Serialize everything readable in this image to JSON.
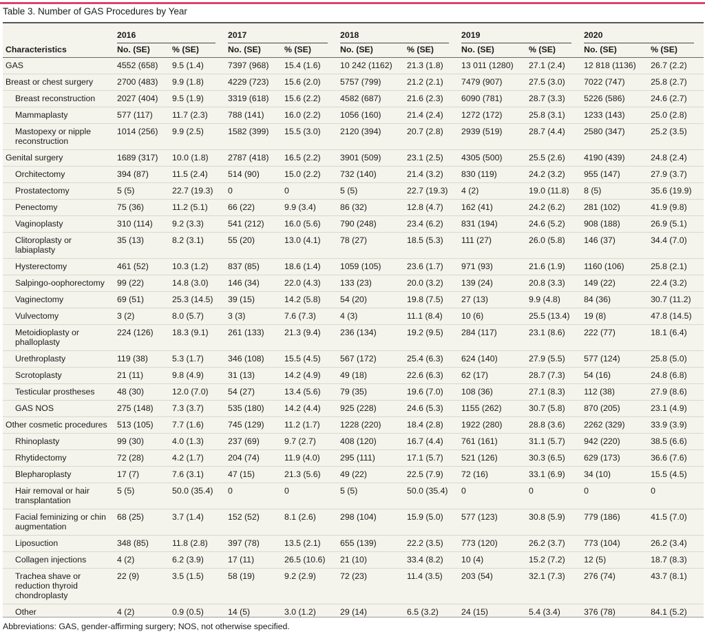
{
  "title": "Table 3. Number of GAS Procedures by Year",
  "header": {
    "characteristics": "Characteristics",
    "years": [
      "2016",
      "2017",
      "2018",
      "2019",
      "2020"
    ],
    "no_se": "No. (SE)",
    "pct_se": "% (SE)"
  },
  "rows": [
    {
      "label": "GAS",
      "indent": 0,
      "values": [
        "4552 (658)",
        "9.5 (1.4)",
        "7397 (968)",
        "15.4 (1.6)",
        "10 242 (1162)",
        "21.3 (1.8)",
        "13 011 (1280)",
        "27.1 (2.4)",
        "12 818 (1136)",
        "26.7 (2.2)"
      ]
    },
    {
      "label": "Breast or chest surgery",
      "indent": 0,
      "values": [
        "2700 (483)",
        "9.9 (1.8)",
        "4229 (723)",
        "15.6 (2.0)",
        "5757 (799)",
        "21.2 (2.1)",
        "7479 (907)",
        "27.5 (3.0)",
        "7022 (747)",
        "25.8 (2.7)"
      ]
    },
    {
      "label": "Breast reconstruction",
      "indent": 1,
      "values": [
        "2027 (404)",
        "9.5 (1.9)",
        "3319 (618)",
        "15.6 (2.2)",
        "4582 (687)",
        "21.6 (2.3)",
        "6090 (781)",
        "28.7 (3.3)",
        "5226 (586)",
        "24.6 (2.7)"
      ]
    },
    {
      "label": "Mammaplasty",
      "indent": 1,
      "values": [
        "577 (117)",
        "11.7 (2.3)",
        "788 (141)",
        "16.0 (2.2)",
        "1056 (160)",
        "21.4 (2.4)",
        "1272 (172)",
        "25.8 (3.1)",
        "1233 (143)",
        "25.0 (2.8)"
      ]
    },
    {
      "label": "Mastopexy or nipple reconstruction",
      "indent": 1,
      "values": [
        "1014 (256)",
        "9.9 (2.5)",
        "1582 (399)",
        "15.5 (3.0)",
        "2120 (394)",
        "20.7 (2.8)",
        "2939 (519)",
        "28.7 (4.4)",
        "2580 (347)",
        "25.2 (3.5)"
      ]
    },
    {
      "label": "Genital surgery",
      "indent": 0,
      "values": [
        "1689 (317)",
        "10.0 (1.8)",
        "2787 (418)",
        "16.5 (2.2)",
        "3901 (509)",
        "23.1 (2.5)",
        "4305 (500)",
        "25.5 (2.6)",
        "4190 (439)",
        "24.8 (2.4)"
      ]
    },
    {
      "label": "Orchitectomy",
      "indent": 1,
      "values": [
        "394 (87)",
        "11.5 (2.4)",
        "514 (90)",
        "15.0 (2.2)",
        "732 (140)",
        "21.4 (3.2)",
        "830 (119)",
        "24.2 (3.2)",
        "955 (147)",
        "27.9 (3.7)"
      ]
    },
    {
      "label": "Prostatectomy",
      "indent": 1,
      "values": [
        "5 (5)",
        "22.7 (19.3)",
        "0",
        "0",
        "5 (5)",
        "22.7 (19.3)",
        "4 (2)",
        "19.0 (11.8)",
        "8 (5)",
        "35.6 (19.9)"
      ]
    },
    {
      "label": "Penectomy",
      "indent": 1,
      "values": [
        "75 (36)",
        "11.2 (5.1)",
        "66 (22)",
        "9.9 (3.4)",
        "86 (32)",
        "12.8 (4.7)",
        "162 (41)",
        "24.2 (6.2)",
        "281 (102)",
        "41.9 (9.8)"
      ]
    },
    {
      "label": "Vaginoplasty",
      "indent": 1,
      "values": [
        "310 (114)",
        "9.2 (3.3)",
        "541 (212)",
        "16.0 (5.6)",
        "790 (248)",
        "23.4 (6.2)",
        "831 (194)",
        "24.6 (5.2)",
        "908 (188)",
        "26.9 (5.1)"
      ]
    },
    {
      "label": "Clitoroplasty or labiaplasty",
      "indent": 1,
      "values": [
        "35 (13)",
        "8.2 (3.1)",
        "55 (20)",
        "13.0 (4.1)",
        "78 (27)",
        "18.5 (5.3)",
        "111 (27)",
        "26.0 (5.8)",
        "146 (37)",
        "34.4 (7.0)"
      ]
    },
    {
      "label": "Hysterectomy",
      "indent": 1,
      "values": [
        "461 (52)",
        "10.3 (1.2)",
        "837 (85)",
        "18.6 (1.4)",
        "1059 (105)",
        "23.6 (1.7)",
        "971 (93)",
        "21.6 (1.9)",
        "1160 (106)",
        "25.8 (2.1)"
      ]
    },
    {
      "label": "Salpingo-oophorectomy",
      "indent": 1,
      "values": [
        "99 (22)",
        "14.8 (3.0)",
        "146 (34)",
        "22.0 (4.3)",
        "133 (23)",
        "20.0 (3.2)",
        "139 (24)",
        "20.8 (3.3)",
        "149 (22)",
        "22.4 (3.2)"
      ]
    },
    {
      "label": "Vaginectomy",
      "indent": 1,
      "values": [
        "69 (51)",
        "25.3 (14.5)",
        "39 (15)",
        "14.2 (5.8)",
        "54 (20)",
        "19.8 (7.5)",
        "27 (13)",
        "9.9 (4.8)",
        "84 (36)",
        "30.7 (11.2)"
      ]
    },
    {
      "label": "Vulvectomy",
      "indent": 1,
      "values": [
        "3 (2)",
        "8.0 (5.7)",
        "3 (3)",
        "7.6 (7.3)",
        "4 (3)",
        "11.1 (8.4)",
        "10 (6)",
        "25.5 (13.4)",
        "19 (8)",
        "47.8 (14.5)"
      ]
    },
    {
      "label": "Metoidioplasty or phalloplasty",
      "indent": 1,
      "values": [
        "224 (126)",
        "18.3 (9.1)",
        "261 (133)",
        "21.3 (9.4)",
        "236 (134)",
        "19.2 (9.5)",
        "284 (117)",
        "23.1 (8.6)",
        "222 (77)",
        "18.1 (6.4)"
      ]
    },
    {
      "label": "Urethroplasty",
      "indent": 1,
      "values": [
        "119 (38)",
        "5.3 (1.7)",
        "346 (108)",
        "15.5 (4.5)",
        "567 (172)",
        "25.4 (6.3)",
        "624 (140)",
        "27.9 (5.5)",
        "577 (124)",
        "25.8 (5.0)"
      ]
    },
    {
      "label": "Scrotoplasty",
      "indent": 1,
      "values": [
        "21 (11)",
        "9.8 (4.9)",
        "31 (13)",
        "14.2 (4.9)",
        "49 (18)",
        "22.6 (6.3)",
        "62 (17)",
        "28.7 (7.3)",
        "54 (16)",
        "24.8 (6.8)"
      ]
    },
    {
      "label": "Testicular prostheses",
      "indent": 1,
      "values": [
        "48 (30)",
        "12.0 (7.0)",
        "54 (27)",
        "13.4 (5.6)",
        "79 (35)",
        "19.6 (7.0)",
        "108 (36)",
        "27.1 (8.3)",
        "112 (38)",
        "27.9 (8.6)"
      ]
    },
    {
      "label": "GAS NOS",
      "indent": 1,
      "values": [
        "275 (148)",
        "7.3 (3.7)",
        "535 (180)",
        "14.2 (4.4)",
        "925 (228)",
        "24.6 (5.3)",
        "1155 (262)",
        "30.7 (5.8)",
        "870 (205)",
        "23.1 (4.9)"
      ]
    },
    {
      "label": "Other cosmetic procedures",
      "indent": 0,
      "values": [
        "513 (105)",
        "7.7 (1.6)",
        "745 (129)",
        "11.2 (1.7)",
        "1228 (220)",
        "18.4 (2.8)",
        "1922 (280)",
        "28.8 (3.6)",
        "2262 (329)",
        "33.9 (3.9)"
      ]
    },
    {
      "label": "Rhinoplasty",
      "indent": 1,
      "values": [
        "99 (30)",
        "4.0 (1.3)",
        "237 (69)",
        "9.7 (2.7)",
        "408 (120)",
        "16.7 (4.4)",
        "761 (161)",
        "31.1 (5.7)",
        "942 (220)",
        "38.5 (6.6)"
      ]
    },
    {
      "label": "Rhytidectomy",
      "indent": 1,
      "values": [
        "72 (28)",
        "4.2 (1.7)",
        "204 (74)",
        "11.9 (4.0)",
        "295 (111)",
        "17.1 (5.7)",
        "521 (126)",
        "30.3 (6.5)",
        "629 (173)",
        "36.6 (7.6)"
      ]
    },
    {
      "label": "Blepharoplasty",
      "indent": 1,
      "values": [
        "17 (7)",
        "7.6 (3.1)",
        "47 (15)",
        "21.3 (5.6)",
        "49 (22)",
        "22.5 (7.9)",
        "72 (16)",
        "33.1 (6.9)",
        "34 (10)",
        "15.5 (4.5)"
      ]
    },
    {
      "label": "Hair removal or hair transplantation",
      "indent": 1,
      "values": [
        "5 (5)",
        "50.0 (35.4)",
        "0",
        "0",
        "5 (5)",
        "50.0 (35.4)",
        "0",
        "0",
        "0",
        "0"
      ]
    },
    {
      "label": "Facial feminizing or chin augmentation",
      "indent": 1,
      "values": [
        "68 (25)",
        "3.7 (1.4)",
        "152 (52)",
        "8.1 (2.6)",
        "298 (104)",
        "15.9 (5.0)",
        "577 (123)",
        "30.8 (5.9)",
        "779 (186)",
        "41.5 (7.0)"
      ]
    },
    {
      "label": "Liposuction",
      "indent": 1,
      "values": [
        "348 (85)",
        "11.8 (2.8)",
        "397 (78)",
        "13.5 (2.1)",
        "655 (139)",
        "22.2 (3.5)",
        "773 (120)",
        "26.2 (3.7)",
        "773 (104)",
        "26.2 (3.4)"
      ]
    },
    {
      "label": "Collagen injections",
      "indent": 1,
      "values": [
        "4 (2)",
        "6.2 (3.9)",
        "17 (11)",
        "26.5 (10.6)",
        "21 (10)",
        "33.4 (8.2)",
        "10 (4)",
        "15.2 (7.2)",
        "12 (5)",
        "18.7 (8.3)"
      ]
    },
    {
      "label": "Trachea shave or reduction thyroid chondroplasty",
      "indent": 1,
      "values": [
        "22 (9)",
        "3.5 (1.5)",
        "58 (19)",
        "9.2 (2.9)",
        "72 (23)",
        "11.4 (3.5)",
        "203 (54)",
        "32.1 (7.3)",
        "276 (74)",
        "43.7 (8.1)"
      ]
    },
    {
      "label": "Other",
      "indent": 1,
      "values": [
        "4 (2)",
        "0.9 (0.5)",
        "14 (5)",
        "3.0 (1.2)",
        "29 (14)",
        "6.5 (3.2)",
        "24 (15)",
        "5.4 (3.4)",
        "376 (78)",
        "84.1 (5.2)"
      ]
    }
  ],
  "footnote": "Abbreviations: GAS, gender-affirming surgery; NOS, not otherwise specified."
}
